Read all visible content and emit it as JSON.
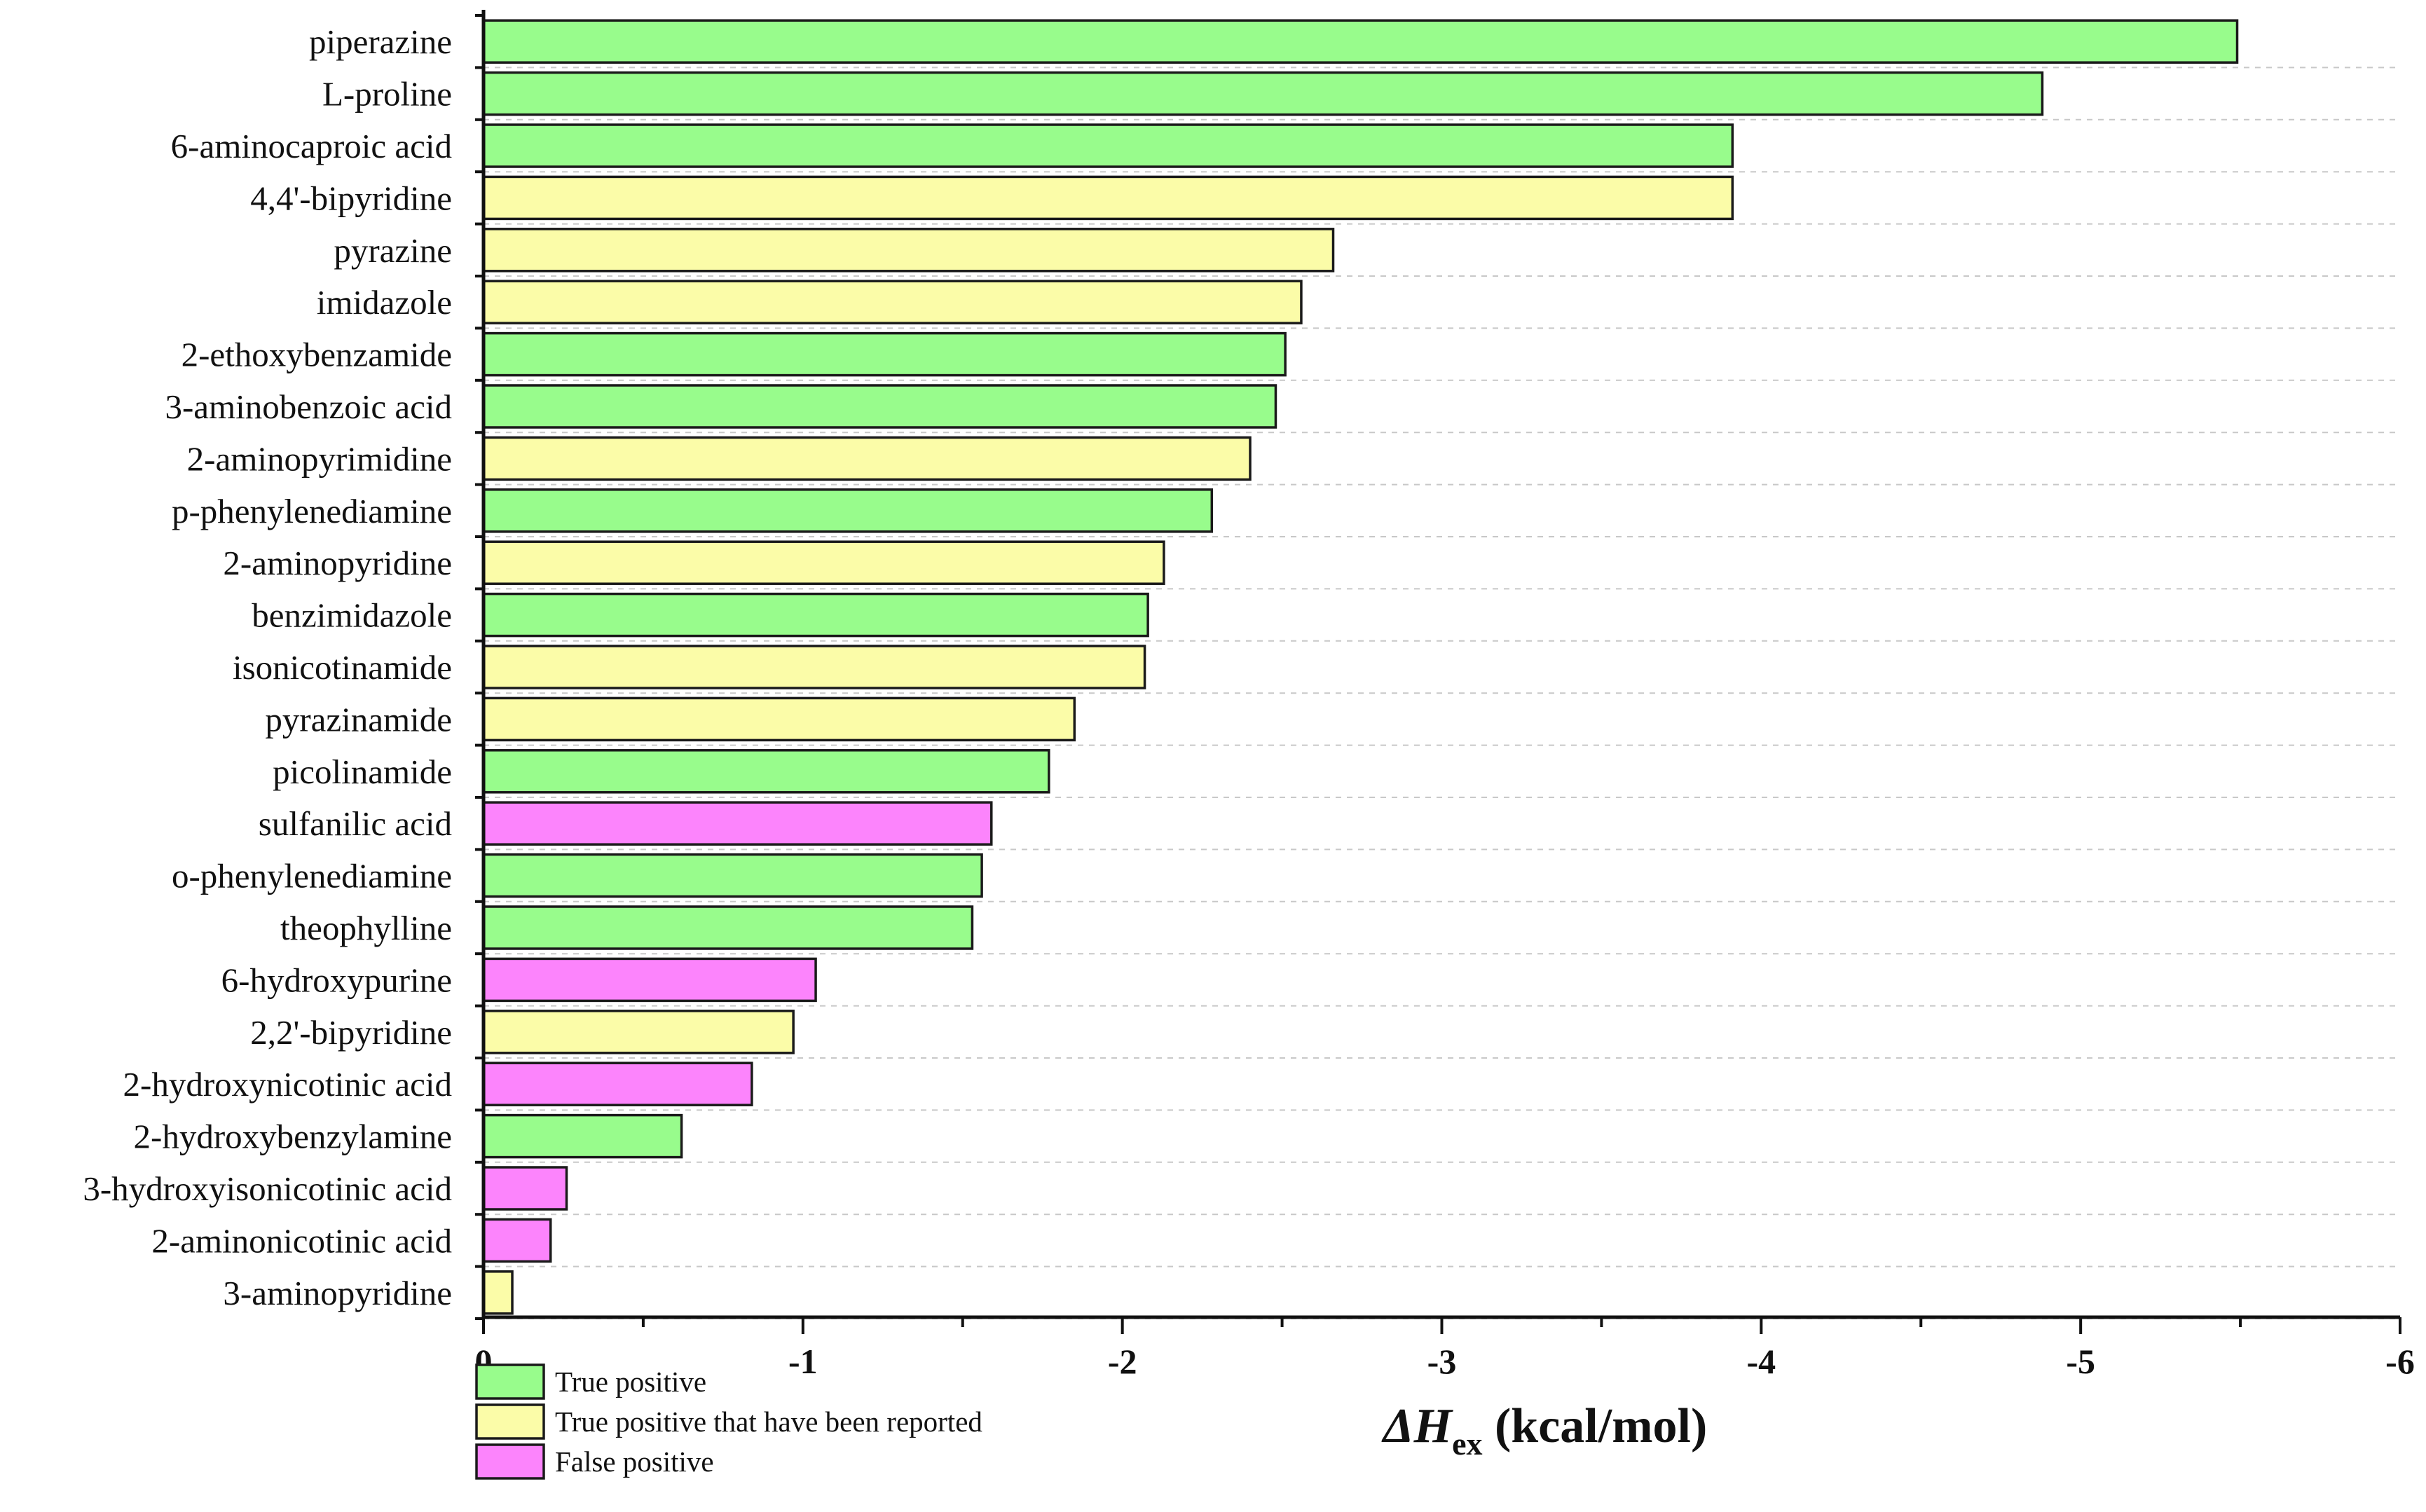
{
  "chart_data": {
    "type": "bar",
    "orientation": "horizontal",
    "categories": [
      "piperazine",
      "L-proline",
      "6-aminocaproic acid",
      "4,4'-bipyridine",
      "pyrazine",
      "imidazole",
      "2-ethoxybenzamide",
      "3-aminobenzoic acid",
      "2-aminopyrimidine",
      "p-phenylenediamine",
      "2-aminopyridine",
      "benzimidazole",
      "isonicotinamide",
      "pyrazinamide",
      "picolinamide",
      "sulfanilic acid",
      "o-phenylenediamine",
      "theophylline",
      "6-hydroxypurine",
      "2,2'-bipyridine",
      "2-hydroxynicotinic acid",
      "2-hydroxybenzylamine",
      "3-hydroxyisonicotinic acid",
      "2-aminonicotinic acid",
      "3-aminopyridine"
    ],
    "values": [
      -5.49,
      -4.88,
      -3.91,
      -3.91,
      -2.66,
      -2.56,
      -2.51,
      -2.48,
      -2.4,
      -2.28,
      -2.13,
      -2.08,
      -2.07,
      -1.85,
      -1.77,
      -1.59,
      -1.56,
      -1.53,
      -1.04,
      -0.97,
      -0.84,
      -0.62,
      -0.26,
      -0.21,
      -0.09
    ],
    "classes": [
      "tp",
      "tp",
      "tp",
      "tpr",
      "tpr",
      "tpr",
      "tp",
      "tp",
      "tpr",
      "tp",
      "tpr",
      "tp",
      "tpr",
      "tpr",
      "tp",
      "fp",
      "tp",
      "tp",
      "fp",
      "tpr",
      "fp",
      "tp",
      "fp",
      "fp",
      "tpr"
    ],
    "class_colors": {
      "tp": "#98fc8c",
      "tpr": "#fbfca8",
      "fp": "#fc84fc"
    },
    "xlim": [
      0,
      -6
    ],
    "xticks": [
      0,
      -1,
      -2,
      -3,
      -4,
      -5,
      -6
    ],
    "xtick_labels": [
      "0",
      "-1",
      "-2",
      "-3",
      "-4",
      "-5",
      "-6"
    ],
    "grid": true,
    "legend_position": "bottom-left",
    "legend": [
      {
        "class": "tp",
        "label": "True positive"
      },
      {
        "class": "tpr",
        "label": "True positive that have been reported"
      },
      {
        "class": "fp",
        "label": "False positive"
      }
    ],
    "xlabel": {
      "main": "ΔH",
      "sub": "ex",
      "unit": " (kcal/mol)"
    },
    "ylabel": ""
  }
}
